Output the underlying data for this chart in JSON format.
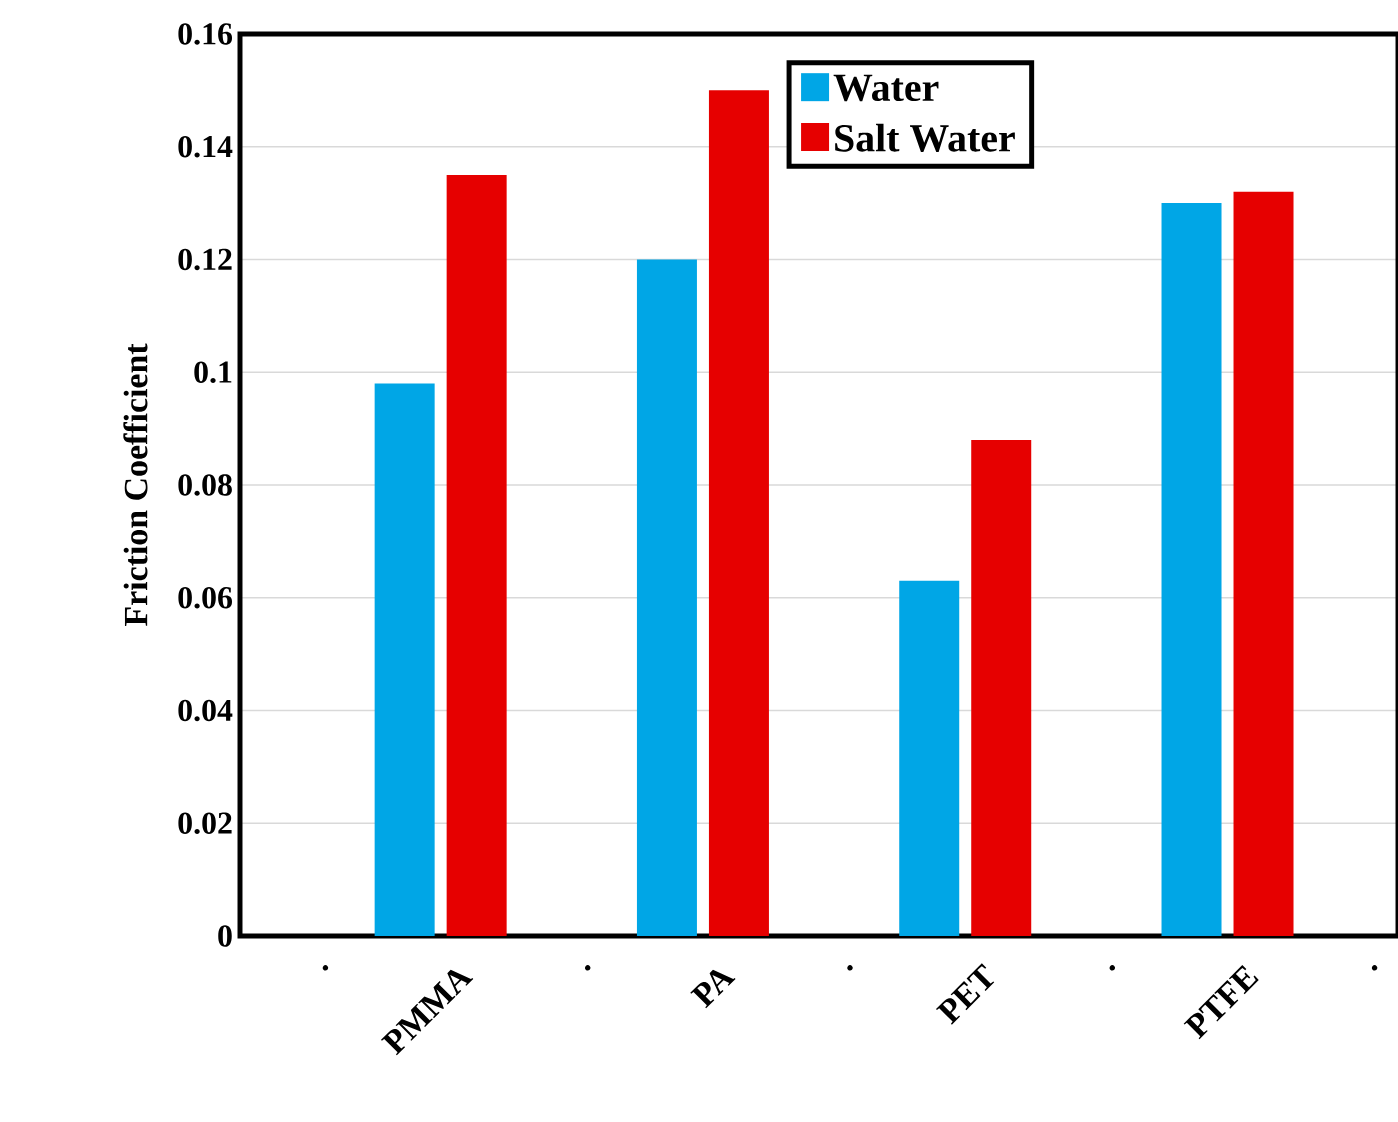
{
  "chart_data": {
    "type": "bar",
    "ylabel": "Friction Coefficient",
    "categories": [
      ".",
      "PMMA",
      ".",
      "PA",
      ".",
      "PET",
      ".",
      "PTFE",
      "."
    ],
    "series": [
      {
        "name": "Water",
        "color": "#00a6e6",
        "values": [
          null,
          0.098,
          null,
          0.12,
          null,
          0.063,
          null,
          0.13,
          null
        ]
      },
      {
        "name": "Salt Water",
        "color": "#e60000",
        "values": [
          null,
          0.135,
          null,
          0.15,
          null,
          0.088,
          null,
          0.132,
          null
        ]
      }
    ],
    "ylim": [
      0,
      0.16
    ],
    "yticks": [
      0,
      0.02,
      0.04,
      0.06,
      0.08,
      0.1,
      0.12,
      0.14,
      0.16
    ],
    "grid": "y",
    "legend": "top right"
  }
}
